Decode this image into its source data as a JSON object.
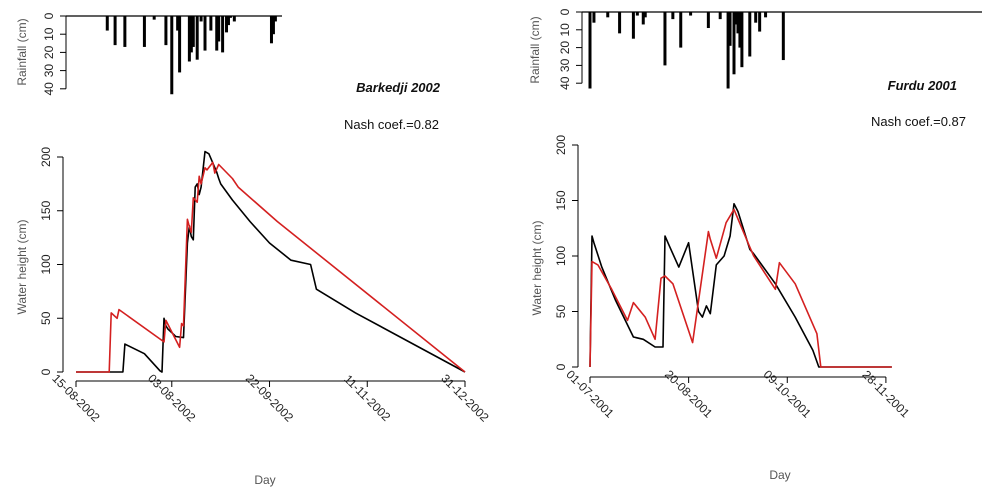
{
  "chart_data": [
    {
      "panel": "left",
      "rainfall": {
        "type": "bar",
        "ylabel": "Rainfall (cm)",
        "yticks": [
          0,
          10,
          20,
          30,
          40
        ],
        "ylim": [
          0,
          40
        ],
        "x": [
          "2002-07-01",
          "2002-07-05",
          "2002-07-10",
          "2002-07-20",
          "2002-07-25",
          "2002-07-31",
          "2002-08-03",
          "2002-08-06",
          "2002-08-07",
          "2002-08-12",
          "2002-08-13",
          "2002-08-14",
          "2002-08-16",
          "2002-08-18",
          "2002-08-20",
          "2002-08-23",
          "2002-08-26",
          "2002-08-27",
          "2002-08-29",
          "2002-08-31",
          "2002-09-01",
          "2002-09-02",
          "2002-09-04",
          "2002-09-23",
          "2002-09-24",
          "2002-09-25"
        ],
        "values": [
          8,
          16,
          17,
          17,
          2,
          16,
          43,
          8,
          31,
          25,
          20,
          17,
          24,
          3,
          19,
          8,
          19,
          14,
          20,
          9,
          5,
          1,
          3,
          15,
          10,
          3
        ]
      },
      "type": "line",
      "title": "Barkedji 2002",
      "annotation": "Nash coef.=0.82",
      "xlabel": "Day",
      "ylabel": "Water height (cm)",
      "xticks": [
        "15-08-2002",
        "03-08-2002",
        "22-09-2002",
        "11-11-2002",
        "31-12-2002"
      ],
      "ylim": [
        0,
        200
      ],
      "yticks": [
        0,
        50,
        100,
        150,
        200
      ],
      "series": [
        {
          "color": "#000000",
          "x": [
            "2002-06-15",
            "2002-07-09",
            "2002-07-10",
            "2002-07-20",
            "2002-07-28",
            "2002-07-29",
            "2002-07-30",
            "2002-07-31",
            "2002-08-01",
            "2002-08-04",
            "2002-08-05",
            "2002-08-09",
            "2002-08-11",
            "2002-08-12",
            "2002-08-13",
            "2002-08-14",
            "2002-08-15",
            "2002-08-16",
            "2002-08-17",
            "2002-08-18",
            "2002-08-20",
            "2002-08-22",
            "2002-08-26",
            "2002-08-27",
            "2002-08-28",
            "2002-09-03",
            "2002-09-12",
            "2002-09-22",
            "2002-10-03",
            "2002-10-13",
            "2002-10-16",
            "2002-11-05",
            "2002-12-31"
          ],
          "values": [
            0,
            0,
            26,
            17,
            1,
            0,
            50,
            43,
            40,
            35,
            33,
            32,
            120,
            136,
            126,
            123,
            172,
            175,
            165,
            172,
            205,
            203,
            186,
            180,
            175,
            160,
            140,
            120,
            104,
            100,
            77,
            55,
            0
          ]
        },
        {
          "color": "#d42020",
          "x": [
            "2002-06-15",
            "2002-07-02",
            "2002-07-03",
            "2002-07-06",
            "2002-07-07",
            "2002-07-30",
            "2002-07-31",
            "2002-08-07",
            "2002-08-08",
            "2002-08-09",
            "2002-08-11",
            "2002-08-12",
            "2002-08-13",
            "2002-08-14",
            "2002-08-16",
            "2002-08-17",
            "2002-08-18",
            "2002-08-20",
            "2002-08-21",
            "2002-08-24",
            "2002-08-25",
            "2002-08-27",
            "2002-09-03",
            "2002-09-06",
            "2002-09-26",
            "2002-12-31"
          ],
          "values": [
            0,
            0,
            55,
            50,
            58,
            28,
            48,
            23,
            45,
            43,
            142,
            135,
            130,
            162,
            158,
            182,
            175,
            190,
            188,
            195,
            185,
            193,
            180,
            172,
            140,
            0
          ]
        }
      ]
    },
    {
      "panel": "right",
      "rainfall": {
        "type": "bar",
        "ylabel": "Rainfall (cm)",
        "yticks": [
          0,
          10,
          20,
          30,
          40
        ],
        "ylim": [
          0,
          40
        ],
        "x": [
          "2001-07-01",
          "2001-07-03",
          "2001-07-10",
          "2001-07-16",
          "2001-07-23",
          "2001-07-25",
          "2001-07-28",
          "2001-07-29",
          "2001-08-08",
          "2001-08-12",
          "2001-08-16",
          "2001-08-21",
          "2001-08-30",
          "2001-09-05",
          "2001-09-09",
          "2001-09-10",
          "2001-09-12",
          "2001-09-13",
          "2001-09-14",
          "2001-09-15",
          "2001-09-16",
          "2001-09-20",
          "2001-09-23",
          "2001-09-25",
          "2001-09-28",
          "2001-10-07"
        ],
        "values": [
          43,
          6,
          3,
          12,
          15,
          2,
          7,
          3,
          30,
          4,
          20,
          2,
          9,
          4,
          43,
          19,
          35,
          7,
          12,
          20,
          31,
          25,
          6,
          11,
          3,
          27
        ]
      },
      "type": "line",
      "title": "Furdu 2001",
      "annotation": "Nash coef.=0.87",
      "xlabel": "Day",
      "ylabel": "Water height (cm)",
      "xticks": [
        "01-07-2001",
        "20-08-2001",
        "09-10-2001",
        "28-11-2001"
      ],
      "ylim": [
        0,
        200
      ],
      "yticks": [
        0,
        50,
        100,
        150,
        200
      ],
      "series": [
        {
          "color": "#000000",
          "x": [
            "2001-07-01",
            "2001-07-02",
            "2001-07-03",
            "2001-07-07",
            "2001-07-14",
            "2001-07-23",
            "2001-07-28",
            "2001-08-03",
            "2001-08-07",
            "2001-08-08",
            "2001-08-10",
            "2001-08-15",
            "2001-08-20",
            "2001-08-25",
            "2001-08-27",
            "2001-08-29",
            "2001-08-31",
            "2001-09-03",
            "2001-09-07",
            "2001-09-10",
            "2001-09-12",
            "2001-09-14",
            "2001-09-20",
            "2001-09-22",
            "2001-10-03",
            "2001-10-13",
            "2001-10-22",
            "2001-10-25",
            "2001-12-01"
          ],
          "values": [
            0,
            118,
            112,
            90,
            60,
            27,
            25,
            18,
            18,
            118,
            110,
            90,
            112,
            50,
            45,
            55,
            48,
            92,
            100,
            118,
            147,
            140,
            106,
            102,
            75,
            45,
            15,
            0,
            0
          ]
        },
        {
          "color": "#d42020",
          "x": [
            "2001-07-01",
            "2001-07-02",
            "2001-07-05",
            "2001-07-12",
            "2001-07-20",
            "2001-07-23",
            "2001-07-29",
            "2001-08-03",
            "2001-08-06",
            "2001-08-08",
            "2001-08-12",
            "2001-08-22",
            "2001-08-30",
            "2001-08-31",
            "2001-09-03",
            "2001-09-08",
            "2001-09-12",
            "2001-09-16",
            "2001-09-20",
            "2001-09-22",
            "2001-10-03",
            "2001-10-05",
            "2001-10-13",
            "2001-10-24",
            "2001-10-26",
            "2001-12-01"
          ],
          "values": [
            0,
            95,
            92,
            70,
            42,
            58,
            45,
            25,
            80,
            82,
            75,
            22,
            122,
            115,
            98,
            130,
            142,
            125,
            108,
            100,
            70,
            94,
            75,
            30,
            0,
            0
          ]
        }
      ]
    }
  ]
}
